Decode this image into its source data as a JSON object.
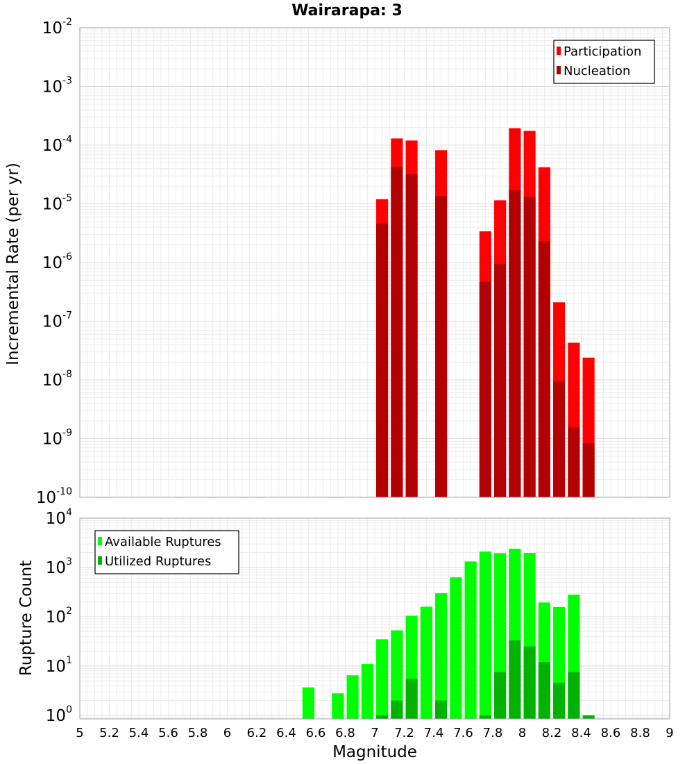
{
  "chart_data": [
    {
      "type": "bar",
      "title": "Wairarapa: 3",
      "xlabel": "",
      "ylabel": "Incremental Rate (per yr)",
      "yscale": "log",
      "ylim": [
        1e-10,
        0.01
      ],
      "xlim": [
        5,
        9
      ],
      "grid": true,
      "legend_position": "top-right",
      "series": [
        {
          "name": "Participation",
          "color": "#ff0000",
          "x": [
            7.05,
            7.15,
            7.25,
            7.45,
            7.75,
            7.85,
            7.95,
            8.05,
            8.15,
            8.25,
            8.35,
            8.45
          ],
          "values": [
            1.2e-05,
            0.00013,
            0.00012,
            8.2e-05,
            3.4e-06,
            1.15e-05,
            0.000195,
            0.000175,
            4.2e-05,
            2.1e-07,
            4.3e-08,
            2.4e-08
          ]
        },
        {
          "name": "Nucleation",
          "color": "#b30000",
          "x": [
            7.05,
            7.15,
            7.25,
            7.45,
            7.75,
            7.85,
            7.95,
            8.05,
            8.15,
            8.25,
            8.35,
            8.45
          ],
          "values": [
            4.6e-06,
            4.2e-05,
            3.2e-05,
            1.35e-05,
            4.7e-07,
            9.5e-07,
            1.7e-05,
            1.3e-05,
            2.3e-06,
            9.5e-09,
            1.55e-09,
            8.3e-10
          ]
        }
      ]
    },
    {
      "type": "bar",
      "title": "",
      "xlabel": "Magnitude",
      "ylabel": "Rupture Count",
      "yscale": "log",
      "ylim": [
        0.85,
        10000
      ],
      "xlim": [
        5,
        9
      ],
      "xticks": [
        "5",
        "5.2",
        "5.4",
        "5.6",
        "5.8",
        "6",
        "6.2",
        "6.4",
        "6.6",
        "6.8",
        "7",
        "7.2",
        "7.4",
        "7.6",
        "7.8",
        "8",
        "8.2",
        "8.4",
        "8.6",
        "8.8",
        "9"
      ],
      "grid": true,
      "legend_position": "top-left",
      "series": [
        {
          "name": "Available Ruptures",
          "color": "#00ff00",
          "x": [
            6.55,
            6.75,
            6.85,
            6.95,
            7.05,
            7.15,
            7.25,
            7.35,
            7.45,
            7.55,
            7.65,
            7.75,
            7.85,
            7.95,
            8.05,
            8.15,
            8.25,
            8.35
          ],
          "values": [
            3.7,
            2.8,
            6.5,
            11,
            35,
            53,
            105,
            160,
            300,
            630,
            1320,
            2100,
            1950,
            2400,
            1970,
            195,
            158,
            280
          ]
        },
        {
          "name": "Utilized Ruptures",
          "color": "#00b300",
          "x": [
            7.05,
            7.15,
            7.25,
            7.45,
            7.75,
            7.85,
            7.95,
            8.05,
            8.15,
            8.25,
            8.35,
            8.45
          ],
          "values": [
            1,
            2,
            5.5,
            2,
            1,
            7.5,
            33,
            25,
            12,
            4.6,
            7.5,
            1
          ]
        }
      ]
    }
  ]
}
